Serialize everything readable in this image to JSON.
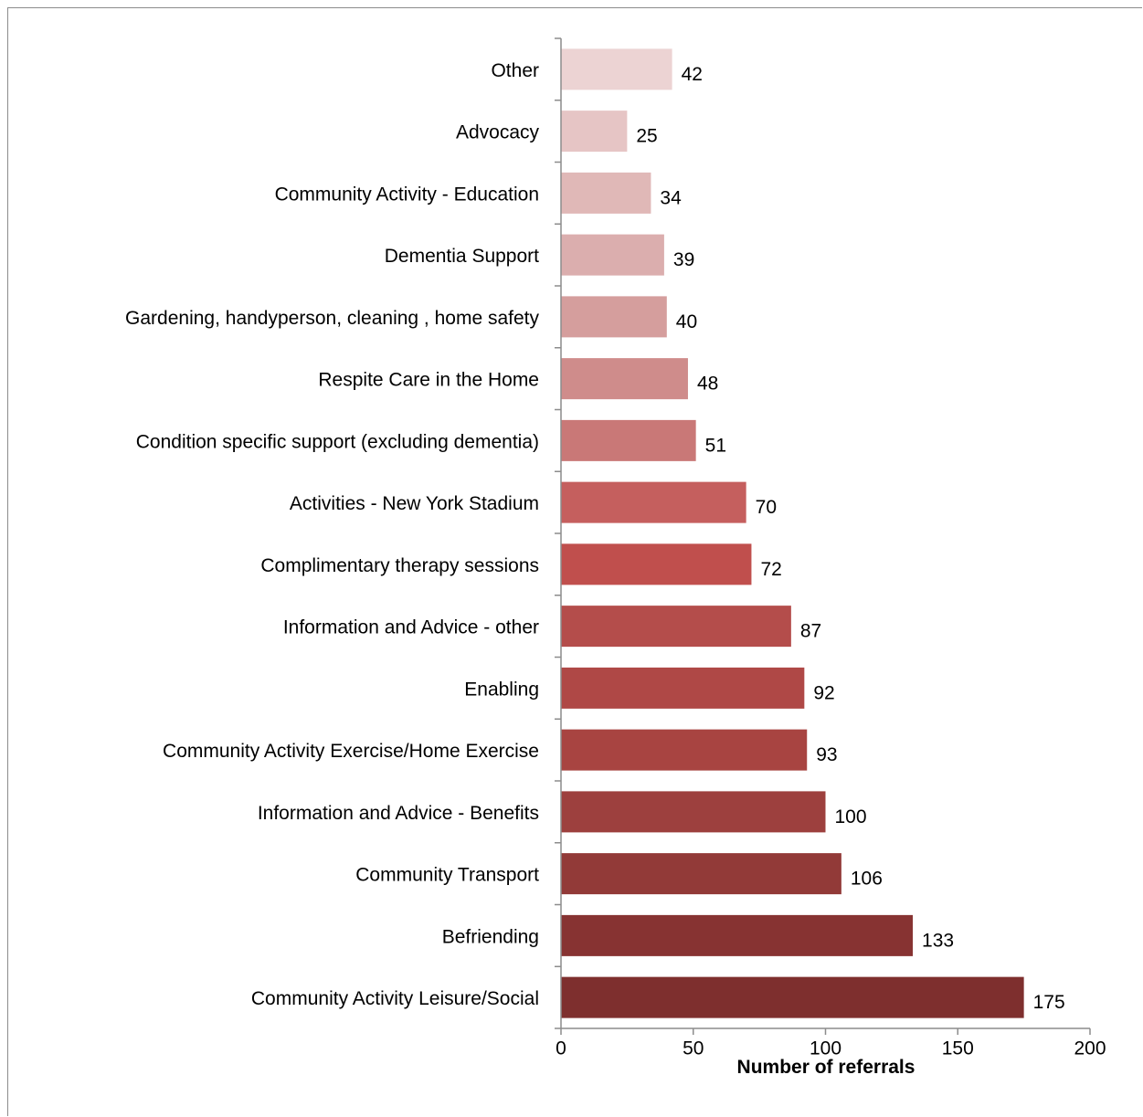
{
  "chart_data": {
    "type": "bar",
    "orientation": "horizontal",
    "title": "",
    "xlabel": "Number of referrals",
    "ylabel": "",
    "xlim": [
      0,
      200
    ],
    "xticks": [
      0,
      50,
      100,
      150,
      200
    ],
    "grid": false,
    "legend": "none",
    "categories": [
      "Other",
      "Advocacy",
      "Community Activity - Education",
      "Dementia Support",
      "Gardening, handyperson, cleaning , home safety",
      "Respite Care in the Home",
      "Condition specific support (excluding dementia)",
      "Activities - New York Stadium",
      "Complimentary therapy sessions",
      "Information and Advice - other",
      "Enabling",
      "Community Activity Exercise/Home Exercise",
      "Information and Advice - Benefits",
      "Community Transport",
      "Befriending",
      "Community Activity Leisure/Social"
    ],
    "values": [
      42,
      25,
      34,
      39,
      40,
      48,
      51,
      70,
      72,
      87,
      92,
      93,
      100,
      106,
      133,
      175
    ],
    "bar_colors": [
      "#ecd3d3",
      "#e6c5c5",
      "#e0b8b7",
      "#dbaeae",
      "#d59e9d",
      "#cf8c8b",
      "#c97877",
      "#c55f5e",
      "#c04f4d",
      "#b44d4b",
      "#af4846",
      "#a84441",
      "#9d403e",
      "#923a38",
      "#873332",
      "#7e2f2e"
    ],
    "axis_color": "#8c8c8c"
  }
}
